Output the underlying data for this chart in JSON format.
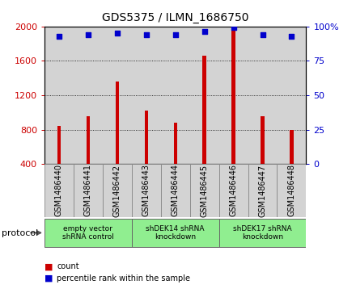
{
  "title": "GDS5375 / ILMN_1686750",
  "samples": [
    "GSM1486440",
    "GSM1486441",
    "GSM1486442",
    "GSM1486443",
    "GSM1486444",
    "GSM1486445",
    "GSM1486446",
    "GSM1486447",
    "GSM1486448"
  ],
  "counts": [
    840,
    960,
    1360,
    1020,
    880,
    1660,
    1990,
    960,
    800
  ],
  "percentile_ranks": [
    93,
    94,
    95,
    94,
    94,
    96,
    99,
    94,
    93
  ],
  "bar_color": "#cc0000",
  "dot_color": "#0000cc",
  "ylim_left": [
    400,
    2000
  ],
  "ylim_right": [
    0,
    100
  ],
  "yticks_left": [
    400,
    800,
    1200,
    1600,
    2000
  ],
  "yticks_right": [
    0,
    25,
    50,
    75,
    100
  ],
  "protocols": [
    {
      "label": "empty vector\nshRNA control",
      "start": 0,
      "end": 3
    },
    {
      "label": "shDEK14 shRNA\nknockdown",
      "start": 3,
      "end": 6
    },
    {
      "label": "shDEK17 shRNA\nknockdown",
      "start": 6,
      "end": 9
    }
  ],
  "green_color": "#90ee90",
  "gray_color": "#d3d3d3",
  "legend_count_label": "count",
  "legend_pct_label": "percentile rank within the sample",
  "protocol_label": "protocol",
  "title_fontsize": 10,
  "tick_fontsize": 8,
  "label_fontsize": 8,
  "sample_fontsize": 7
}
